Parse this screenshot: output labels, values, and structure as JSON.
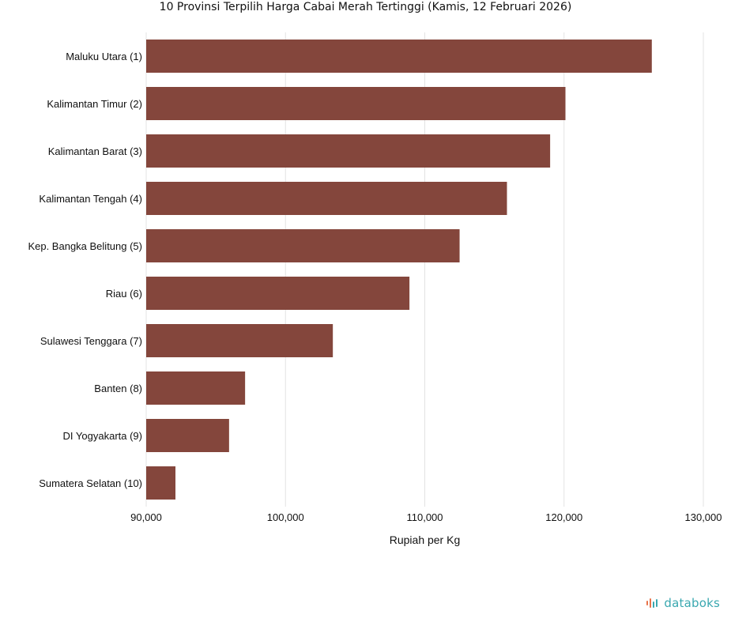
{
  "chart_data": {
    "type": "bar",
    "orientation": "horizontal",
    "title": "10 Provinsi Terpilih Harga Cabai Merah Tertinggi (Kamis, 12 Februari 2026)",
    "categories": [
      "Maluku Utara (1)",
      "Kalimantan Timur (2)",
      "Kalimantan Barat (3)",
      "Kalimantan Tengah (4)",
      "Kep. Bangka Belitung (5)",
      "Riau (6)",
      "Sulawesi Tenggara (7)",
      "Banten (8)",
      "DI Yogyakarta (9)",
      "Sumatera Selatan (10)"
    ],
    "values": [
      126300,
      120100,
      119000,
      115900,
      112500,
      108900,
      103400,
      97100,
      95950,
      92100
    ],
    "xlabel": "Rupiah per Kg",
    "ylabel": "",
    "xlim": [
      90000,
      130000
    ],
    "xticks": [
      90000,
      100000,
      110000,
      120000,
      130000
    ],
    "xtick_labels": [
      "90,000",
      "100,000",
      "110,000",
      "120,000",
      "130,000"
    ],
    "grid": true,
    "bar_color": "#84463c",
    "grid_color": "#e3e3e3"
  },
  "brand": {
    "name": "databoks",
    "text_color": "#3aa8b0",
    "accent_color": "#e8734a"
  }
}
